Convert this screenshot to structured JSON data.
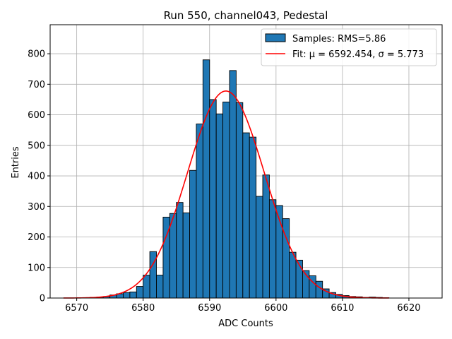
{
  "chart_data": {
    "type": "bar",
    "title": "Run 550, channel043, Pedestal",
    "xlabel": "ADC Counts",
    "ylabel": "Entries",
    "xlim": [
      6566,
      6625
    ],
    "ylim": [
      0,
      895
    ],
    "xticks": [
      6570,
      6580,
      6590,
      6600,
      6610,
      6620
    ],
    "yticks": [
      0,
      100,
      200,
      300,
      400,
      500,
      600,
      700,
      800
    ],
    "grid": true,
    "legend_position": "top-right",
    "histogram": {
      "name": "Samples: RMS=5.86",
      "color": "#1f77b4",
      "edgecolor": "#000000",
      "bin_edges": [
        6568.0,
        6569.0,
        6570.0,
        6571.0,
        6572.0,
        6573.0,
        6574.0,
        6575.0,
        6576.0,
        6577.0,
        6578.0,
        6579.0,
        6580.0,
        6581.0,
        6582.0,
        6583.0,
        6584.0,
        6585.0,
        6586.0,
        6587.0,
        6588.0,
        6589.0,
        6590.0,
        6591.0,
        6592.0,
        6593.0,
        6594.0,
        6595.0,
        6596.0,
        6597.0,
        6598.0,
        6599.0,
        6600.0,
        6601.0,
        6602.0,
        6603.0,
        6604.0,
        6605.0,
        6606.0,
        6607.0,
        6608.0,
        6609.0,
        6610.0,
        6611.0,
        6612.0,
        6613.0,
        6614.0,
        6615.0,
        6616.0,
        6617.0
      ],
      "counts": [
        0,
        0,
        0,
        1,
        2,
        3,
        5,
        10,
        14,
        18,
        20,
        38,
        75,
        152,
        75,
        265,
        277,
        313,
        279,
        418,
        570,
        780,
        650,
        603,
        642,
        745,
        640,
        541,
        527,
        333,
        403,
        322,
        303,
        260,
        150,
        124,
        90,
        73,
        55,
        30,
        18,
        12,
        8,
        5,
        4,
        2,
        3,
        2,
        1
      ]
    },
    "fit": {
      "name": "Fit: μ = 6592.454, σ = 5.773",
      "color": "#ff0000",
      "mu": 6592.454,
      "sigma": 5.773,
      "amplitude": 678,
      "x_range": [
        6568,
        6617
      ]
    }
  }
}
